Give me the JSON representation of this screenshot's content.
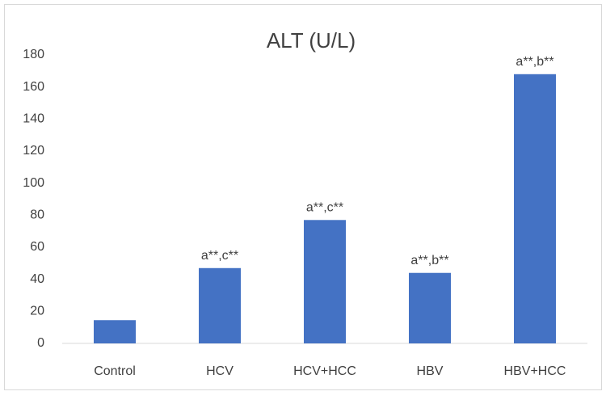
{
  "chart_data": {
    "type": "bar",
    "title": "ALT (U/L)",
    "categories": [
      "Control",
      "HCV",
      "HCV+HCC",
      "HBV",
      "HBV+HCC"
    ],
    "values": [
      14.5,
      47,
      77,
      44,
      168
    ],
    "annotations": [
      null,
      "a**,c**",
      "a**,c**",
      "a**,b**",
      "a**,b**"
    ],
    "color": "#4472c4",
    "ylim": [
      0,
      180
    ],
    "yticks": [
      0,
      20,
      40,
      60,
      80,
      100,
      120,
      140,
      160,
      180
    ],
    "grid": false
  }
}
